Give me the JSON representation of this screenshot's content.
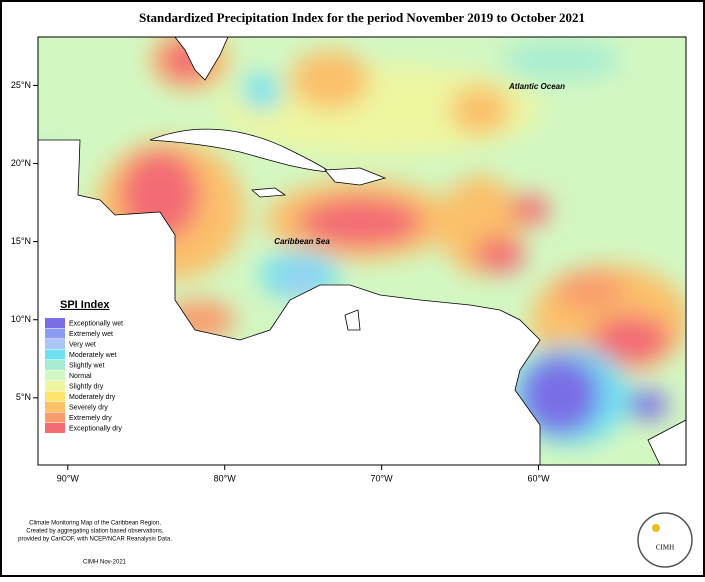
{
  "title": "Standardized Precipitation Index for the period November 2019 to October 2021",
  "map": {
    "xlim": [
      -91.9,
      -50.6
    ],
    "ylim": [
      0.7,
      28.1
    ],
    "xticks": [
      {
        "value": -90,
        "label": "90°W"
      },
      {
        "value": -80,
        "label": "80°W"
      },
      {
        "value": -70,
        "label": "70°W"
      },
      {
        "value": -60,
        "label": "60°W"
      }
    ],
    "yticks": [
      {
        "value": 25,
        "label": "25°N"
      },
      {
        "value": 20,
        "label": "20°N"
      },
      {
        "value": 15,
        "label": "15°N"
      },
      {
        "value": 10,
        "label": "10°N"
      },
      {
        "value": 5,
        "label": "5°N"
      }
    ],
    "labels": [
      "Atlantic Ocean",
      "Caribbean Sea"
    ]
  },
  "legend": {
    "title": "SPI Index",
    "items": [
      {
        "label": "Exceptionally wet",
        "color": "#7a6ee6"
      },
      {
        "label": "Extremely wet",
        "color": "#8d9cf0"
      },
      {
        "label": "Very wet",
        "color": "#a9c6f5"
      },
      {
        "label": "Moderately wet",
        "color": "#6fe0f2"
      },
      {
        "label": "Slightly wet",
        "color": "#a8edd2"
      },
      {
        "label": "Normal",
        "color": "#d3f7c2"
      },
      {
        "label": "Slightly dry",
        "color": "#eef6a0"
      },
      {
        "label": "Moderately dry",
        "color": "#fde36c"
      },
      {
        "label": "Severely dry",
        "color": "#fbc06a"
      },
      {
        "label": "Extremely dry",
        "color": "#f99b6c"
      },
      {
        "label": "Exceptionally dry",
        "color": "#f36c74"
      }
    ]
  },
  "footer": {
    "lines": [
      "Climate Monitoring Map of the Caribbean Region,",
      "Created by aggregating station based observations,",
      "provided by CariCOF, with NCEP/NCAR Reanalysis Data."
    ],
    "credit": "CIMH Nov-2021"
  },
  "logo": "CIMH"
}
